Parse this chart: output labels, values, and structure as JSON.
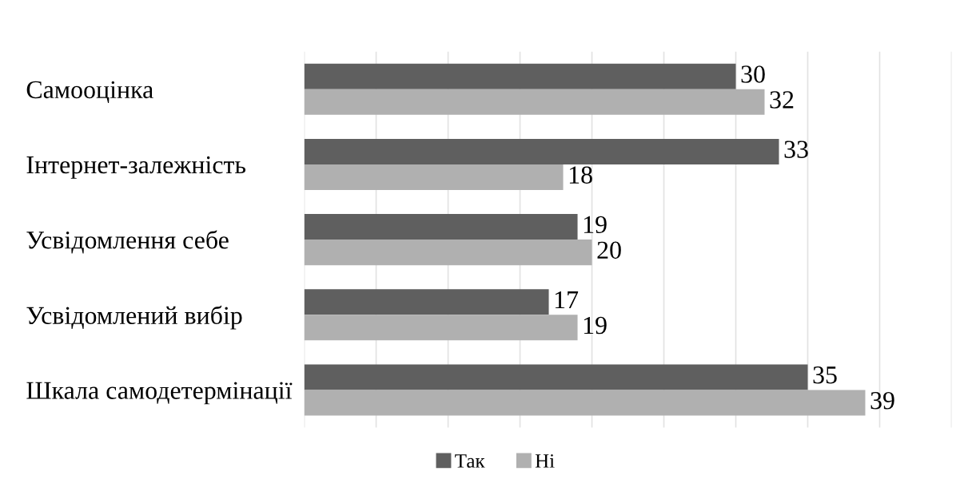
{
  "chart_data": {
    "type": "bar",
    "orientation": "horizontal",
    "categories": [
      "Самооцінка",
      "Інтернет-залежність",
      "Усвідомлення себе",
      "Усвідомлений вибір",
      "Шкала самодетермінації"
    ],
    "series": [
      {
        "name": "Так",
        "color": "#5f5f5f",
        "values": [
          30,
          33,
          19,
          17,
          35
        ]
      },
      {
        "name": "Ні",
        "color": "#b0b0b0",
        "values": [
          32,
          18,
          20,
          19,
          39
        ]
      }
    ],
    "xlim": [
      0,
      45
    ],
    "xticks": [
      {
        "value": 0,
        "label": null
      },
      {
        "value": 5,
        "label": null
      },
      {
        "value": 10,
        "label": null
      },
      {
        "value": 15,
        "label": null
      },
      {
        "value": 20,
        "label": null
      },
      {
        "value": 25,
        "label": null
      },
      {
        "value": 30,
        "label": null
      },
      {
        "value": 35,
        "label": null
      },
      {
        "value": 40,
        "label": null
      },
      {
        "value": 45,
        "label": null
      }
    ],
    "tick_labels": "y",
    "grid": "x",
    "legend": "bottom",
    "data_labels": true
  }
}
